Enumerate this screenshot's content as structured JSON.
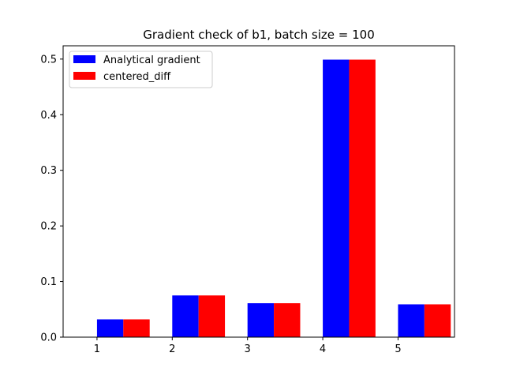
{
  "chart_data": {
    "type": "bar",
    "title": "Gradient check of b1, batch size = 100",
    "xlabel": "",
    "ylabel": "",
    "categories": [
      "1",
      "2",
      "3",
      "4",
      "5"
    ],
    "x": [
      1,
      2,
      3,
      4,
      5
    ],
    "series": [
      {
        "name": "Analytical gradient",
        "color": "#0000ff",
        "values": [
          0.032,
          0.075,
          0.061,
          0.499,
          0.059
        ]
      },
      {
        "name": "centered_diff",
        "color": "#ff0000",
        "values": [
          0.032,
          0.075,
          0.061,
          0.499,
          0.059
        ]
      }
    ],
    "xlim": [
      0.55,
      5.75
    ],
    "ylim": [
      0.0,
      0.5239
    ],
    "yticks": [
      0.0,
      0.1,
      0.2,
      0.3,
      0.4,
      0.5
    ],
    "ytick_labels": [
      "0.0",
      "0.1",
      "0.2",
      "0.3",
      "0.4",
      "0.5"
    ],
    "bar_width": 0.35,
    "legend_position": "upper-left",
    "grid": false
  }
}
